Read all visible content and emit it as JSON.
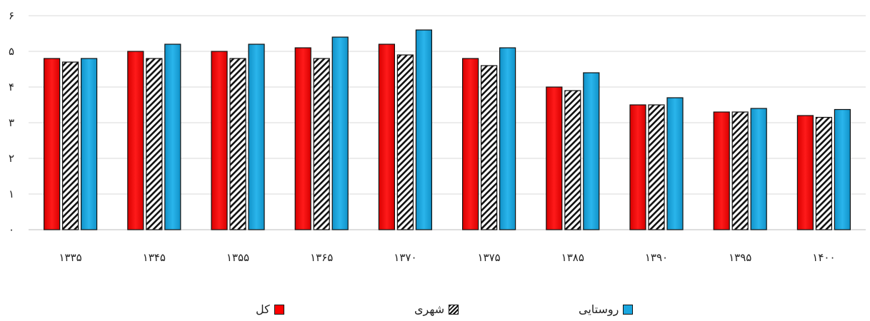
{
  "chart_data": {
    "type": "bar",
    "categories": [
      "۱۳۳۵",
      "۱۳۴۵",
      "۱۳۵۵",
      "۱۳۶۵",
      "۱۳۷۰",
      "۱۳۷۵",
      "۱۳۸۵",
      "۱۳۹۰",
      "۱۳۹۵",
      "۱۴۰۰"
    ],
    "series": [
      {
        "name": "کل",
        "key": "total",
        "color": "#ff0000",
        "values": [
          4.8,
          5.0,
          5.0,
          5.1,
          5.2,
          4.8,
          4.0,
          3.5,
          3.3,
          3.2
        ]
      },
      {
        "name": "شهری",
        "key": "urban",
        "color": "#ffffff",
        "pattern": "diagonal-hatch",
        "values": [
          4.7,
          4.8,
          4.8,
          4.8,
          4.9,
          4.6,
          3.9,
          3.5,
          3.3,
          3.15
        ]
      },
      {
        "name": "روستایی",
        "key": "rural",
        "color": "#1aa7e0",
        "values": [
          4.8,
          5.2,
          5.2,
          5.4,
          5.6,
          5.1,
          4.4,
          3.7,
          3.4,
          3.37
        ]
      }
    ],
    "ylim": [
      0,
      6
    ],
    "y_ticks": [
      "۰",
      "۱",
      "۲",
      "۳",
      "۴",
      "۵",
      "۶"
    ],
    "grid": true,
    "legend_position": "bottom",
    "title": "",
    "xlabel": "",
    "ylabel": ""
  }
}
